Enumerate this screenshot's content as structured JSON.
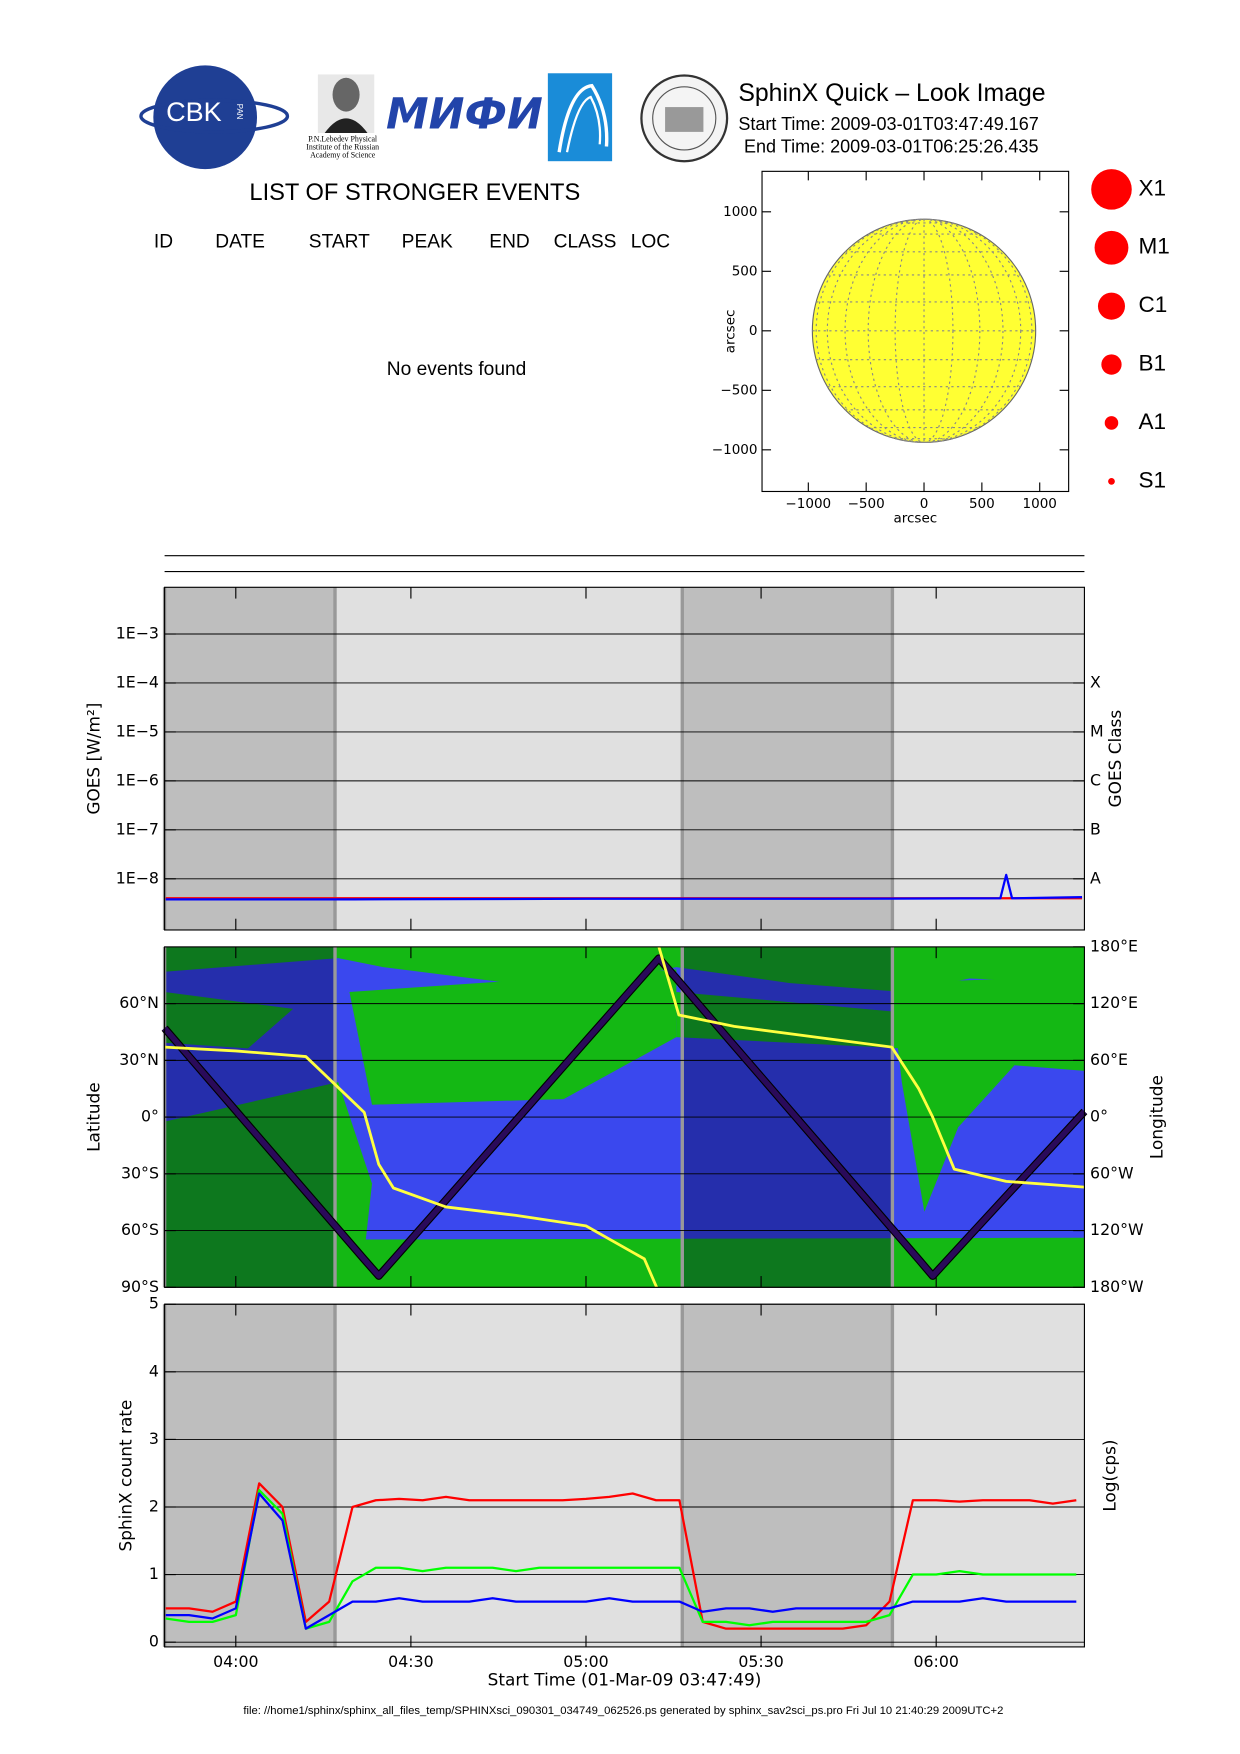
{
  "header": {
    "title": "SphinX Quick – Look Image",
    "start_time": "Start Time: 2009-03-01T03:47:49.167",
    "end_time": "End Time: 2009-03-01T06:25:26.435",
    "logos": {
      "cbk": "CBK",
      "pan": "PAN",
      "lebedev": [
        "P.N.Lebedev Physical",
        "Institute of the Russian",
        "Academy of Science"
      ],
      "mifi": "МИФИ"
    }
  },
  "events": {
    "title": "LIST OF STRONGER EVENTS",
    "columns": [
      "ID",
      "DATE",
      "START",
      "PEAK",
      "END",
      "CLASS",
      "LOC"
    ],
    "message": "No events found"
  },
  "footer": "file: //home1/sphinx/sphinx_all_files_temp/SPHINXsci_090301_034749_062526.ps generated by sphinx_sav2sci_ps.pro Fri Jul 10 21:40:29 2009UTC+2",
  "chart_data": [
    {
      "type": "disk",
      "xlabel": "arcsec",
      "ylabel": "arcsec",
      "xlim": [
        -1400,
        1250
      ],
      "ylim": [
        -1350,
        1340
      ],
      "xticks": [
        {
          "value": -1000,
          "label": "−1000"
        },
        {
          "value": -500,
          "label": "−500"
        },
        0,
        500,
        1000
      ],
      "yticks": [
        {
          "value": -1000,
          "label": "−1000"
        },
        {
          "value": -500,
          "label": "−500"
        },
        0,
        500,
        1000
      ],
      "radius": 965,
      "color": "#ffff33",
      "legend": {
        "labels": [
          "X1",
          "M1",
          "C1",
          "B1",
          "A1",
          "S1"
        ],
        "color": "#ff0000"
      }
    },
    {
      "type": "line",
      "ylabel": "GOES [W/m²]",
      "y2label": "GOES Class",
      "ylog": true,
      "grid": true,
      "ylim": [
        9e-10,
        0.009
      ],
      "yticks": [
        {
          "value": 1e-08,
          "label": "1E−8"
        },
        {
          "value": 1e-07,
          "label": "1E−7"
        },
        {
          "value": 1e-06,
          "label": "1E−6"
        },
        {
          "value": 1e-05,
          "label": "1E−5"
        },
        {
          "value": 0.0001,
          "label": "1E−4"
        },
        {
          "value": 0.001,
          "label": "1E−3"
        }
      ],
      "y2ticks": [
        {
          "value": 1e-08,
          "label": "A"
        },
        {
          "value": 1e-07,
          "label": "B"
        },
        {
          "value": 1e-06,
          "label": "C"
        },
        {
          "value": 1e-05,
          "label": "M"
        },
        {
          "value": 0.0001,
          "label": "X"
        }
      ],
      "x": [
        228,
        260,
        300,
        340,
        371,
        372,
        373,
        385
      ],
      "series": [
        {
          "color": "#ff0000",
          "values": [
            4e-09,
            4e-09,
            4e-09,
            4e-09,
            4e-09,
            4e-09,
            4e-09,
            4e-09
          ]
        },
        {
          "color": "#0000ff",
          "values": [
            3.8e-09,
            3.8e-09,
            3.9e-09,
            3.9e-09,
            4e-09,
            1.2e-08,
            4e-09,
            4.2e-09
          ]
        }
      ]
    },
    {
      "type": "track",
      "ylabel": "Latitude",
      "y2label": "Longitude",
      "grid": true,
      "ylim": [
        -90,
        90
      ],
      "y2lim": [
        -180,
        180
      ],
      "yticks": [
        {
          "value": -90,
          "label": "90°S"
        },
        {
          "value": -60,
          "label": "60°S"
        },
        {
          "value": -30,
          "label": "30°S"
        },
        {
          "value": 0,
          "label": "0°"
        },
        {
          "value": 30,
          "label": "30°N"
        },
        {
          "value": 60,
          "label": "60°N"
        }
      ],
      "y2ticks": [
        {
          "value": -180,
          "label": "180°W"
        },
        {
          "value": -120,
          "label": "120°W"
        },
        {
          "value": -60,
          "label": "60°W"
        },
        {
          "value": 0,
          "label": "0°"
        },
        {
          "value": 60,
          "label": "60°E"
        },
        {
          "value": 120,
          "label": "120°E"
        },
        {
          "value": 180,
          "label": "180°E"
        }
      ],
      "x": [
        227.8,
        240,
        252,
        262,
        264.5,
        267,
        276,
        288,
        300,
        310,
        312.1,
        312.3,
        312.5,
        315.9,
        325.4,
        340,
        352.4,
        357,
        359.4,
        363.1,
        372,
        385.4
      ],
      "series": [
        {
          "color": "#2a0a5a",
          "values": [
            47,
            3.4,
            -39.5,
            -75.2,
            -84,
            -75.3,
            -43.8,
            -1.8,
            40.3,
            75.3,
            82.6,
            83.3,
            84,
            71.8,
            37.8,
            -14.4,
            -58.8,
            -75.3,
            -84,
            -71.6,
            -41.8,
            3
          ]
        },
        {
          "color": "#ffff40",
          "axis": "y2",
          "values": [
            74,
            70,
            64,
            5,
            -50,
            -75,
            -95,
            -104,
            -115,
            -150,
            -180,
            null,
            180,
            108,
            96,
            84,
            74,
            30,
            0,
            -55,
            -68,
            -74
          ]
        }
      ]
    },
    {
      "type": "line",
      "xlabel": "Start Time (01-Mar-09 03:47:49)",
      "ylabel": "SphinX count rate",
      "y2label": "Log(cps)",
      "grid": true,
      "xlim": [
        227.8,
        385.4
      ],
      "xticks": [
        {
          "value": 240,
          "label": "04:00"
        },
        {
          "value": 270,
          "label": "04:30"
        },
        {
          "value": 300,
          "label": "05:00"
        },
        {
          "value": 330,
          "label": "05:30"
        },
        {
          "value": 360,
          "label": "06:00"
        }
      ],
      "ylim": [
        -0.07,
        5
      ],
      "yticks": [
        0,
        1,
        2,
        3,
        4,
        5
      ],
      "shaded": [
        [
          227.8,
          257
        ],
        [
          316.5,
          352.5
        ]
      ],
      "x": [
        228,
        232,
        236,
        240,
        244,
        248,
        252,
        256,
        260,
        264,
        268,
        272,
        276,
        280,
        284,
        288,
        292,
        296,
        300,
        304,
        308,
        312,
        316,
        320,
        324,
        328,
        332,
        336,
        340,
        344,
        348,
        352,
        356,
        360,
        364,
        368,
        372,
        376,
        380,
        384
      ],
      "series": [
        {
          "color": "#ff0000",
          "values": [
            0.5,
            0.5,
            0.45,
            0.6,
            2.35,
            2.0,
            0.3,
            0.6,
            2.0,
            2.1,
            2.12,
            2.1,
            2.15,
            2.1,
            2.1,
            2.1,
            2.1,
            2.1,
            2.12,
            2.15,
            2.2,
            2.1,
            2.1,
            0.3,
            0.2,
            0.2,
            0.2,
            0.2,
            0.2,
            0.2,
            0.25,
            0.6,
            2.1,
            2.1,
            2.08,
            2.1,
            2.1,
            2.1,
            2.05,
            2.1
          ]
        },
        {
          "color": "#00ff00",
          "values": [
            0.35,
            0.3,
            0.3,
            0.4,
            2.25,
            1.9,
            0.2,
            0.3,
            0.9,
            1.1,
            1.1,
            1.05,
            1.1,
            1.1,
            1.1,
            1.05,
            1.1,
            1.1,
            1.1,
            1.1,
            1.1,
            1.1,
            1.1,
            0.3,
            0.3,
            0.25,
            0.3,
            0.3,
            0.3,
            0.3,
            0.3,
            0.4,
            1.0,
            1.0,
            1.05,
            1.0,
            1.0,
            1.0,
            1.0,
            1.0
          ]
        },
        {
          "color": "#0000ff",
          "values": [
            0.4,
            0.4,
            0.35,
            0.5,
            2.2,
            1.8,
            0.2,
            0.4,
            0.6,
            0.6,
            0.65,
            0.6,
            0.6,
            0.6,
            0.65,
            0.6,
            0.6,
            0.6,
            0.6,
            0.65,
            0.6,
            0.6,
            0.6,
            0.45,
            0.5,
            0.5,
            0.45,
            0.5,
            0.5,
            0.5,
            0.5,
            0.5,
            0.6,
            0.6,
            0.6,
            0.65,
            0.6,
            0.6,
            0.6,
            0.6
          ]
        }
      ]
    }
  ]
}
